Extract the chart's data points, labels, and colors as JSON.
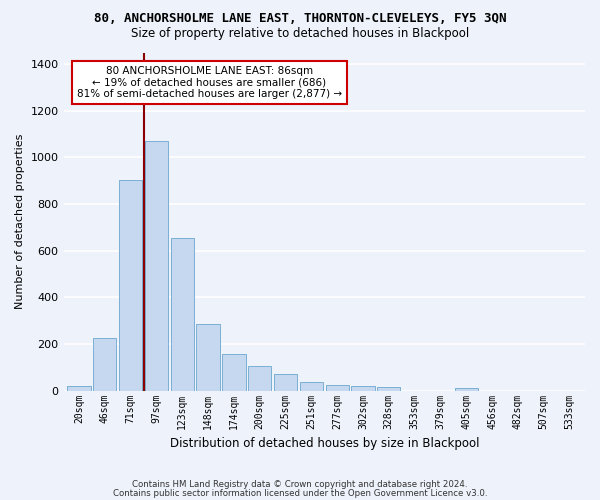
{
  "title1": "80, ANCHORSHOLME LANE EAST, THORNTON-CLEVELEYS, FY5 3QN",
  "title2": "Size of property relative to detached houses in Blackpool",
  "xlabel": "Distribution of detached houses by size in Blackpool",
  "ylabel": "Number of detached properties",
  "bar_values": [
    20,
    225,
    905,
    1070,
    655,
    285,
    155,
    105,
    70,
    35,
    25,
    20,
    15,
    0,
    0,
    10,
    0,
    0,
    0,
    0
  ],
  "bin_labels": [
    "20sqm",
    "46sqm",
    "71sqm",
    "97sqm",
    "123sqm",
    "148sqm",
    "174sqm",
    "200sqm",
    "225sqm",
    "251sqm",
    "277sqm",
    "302sqm",
    "328sqm",
    "353sqm",
    "379sqm",
    "405sqm",
    "456sqm",
    "482sqm",
    "507sqm",
    "533sqm"
  ],
  "bar_color": "#c5d8f0",
  "bar_edge_color": "#7aafd4",
  "vline_color": "#8b0000",
  "annotation_text": "80 ANCHORSHOLME LANE EAST: 86sqm\n← 19% of detached houses are smaller (686)\n81% of semi-detached houses are larger (2,877) →",
  "annotation_box_color": "#ffffff",
  "annotation_box_edge": "#cc0000",
  "ylim": [
    0,
    1450
  ],
  "yticks": [
    0,
    200,
    400,
    600,
    800,
    1000,
    1200,
    1400
  ],
  "footer1": "Contains HM Land Registry data © Crown copyright and database right 2024.",
  "footer2": "Contains public sector information licensed under the Open Government Licence v3.0.",
  "bg_color": "#eef2fa",
  "plot_bg_color": "#eef2fa"
}
